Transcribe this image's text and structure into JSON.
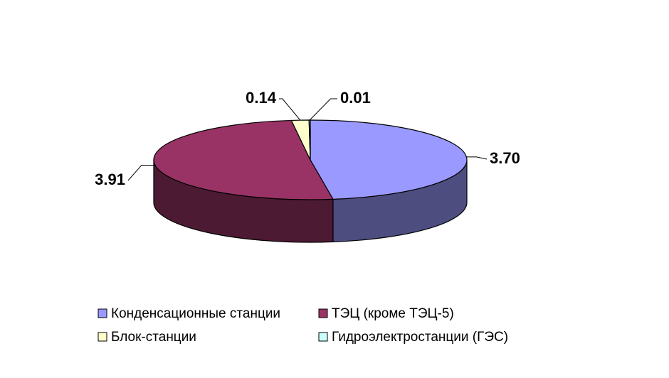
{
  "chart_data": {
    "type": "pie",
    "categories": [
      "Конденсационные станции",
      "ТЭЦ (кроме ТЭЦ-5)",
      "Блок-станции",
      "Гидроэлектростанции (ГЭС)"
    ],
    "values": [
      3.7,
      3.91,
      0.14,
      0.01
    ],
    "value_labels": [
      "3.70",
      "3.91",
      "0.14",
      "0.01"
    ],
    "colors": [
      "#9999ff",
      "#993366",
      "#ffffcc",
      "#ccffff"
    ]
  }
}
